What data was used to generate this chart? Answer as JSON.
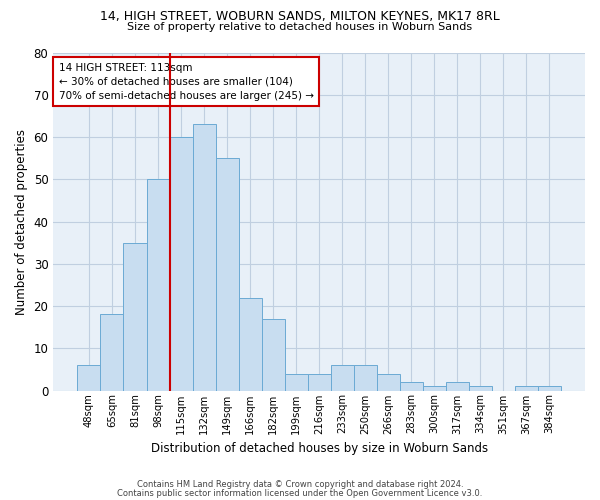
{
  "title1": "14, HIGH STREET, WOBURN SANDS, MILTON KEYNES, MK17 8RL",
  "title2": "Size of property relative to detached houses in Woburn Sands",
  "xlabel": "Distribution of detached houses by size in Woburn Sands",
  "ylabel": "Number of detached properties",
  "categories": [
    "48sqm",
    "65sqm",
    "81sqm",
    "98sqm",
    "115sqm",
    "132sqm",
    "149sqm",
    "166sqm",
    "182sqm",
    "199sqm",
    "216sqm",
    "233sqm",
    "250sqm",
    "266sqm",
    "283sqm",
    "300sqm",
    "317sqm",
    "334sqm",
    "351sqm",
    "367sqm",
    "384sqm"
  ],
  "values": [
    6,
    18,
    35,
    50,
    60,
    63,
    55,
    22,
    17,
    4,
    4,
    6,
    6,
    4,
    2,
    1,
    2,
    1,
    0,
    1,
    1
  ],
  "bar_color": "#c8ddf0",
  "bar_edge_color": "#6baad4",
  "grid_color": "#c0cfe0",
  "background_color": "#e8f0f8",
  "annotation_line1": "14 HIGH STREET: 113sqm",
  "annotation_line2": "← 30% of detached houses are smaller (104)",
  "annotation_line3": "70% of semi-detached houses are larger (245) →",
  "vline_color": "#cc0000",
  "box_color": "#cc0000",
  "ylim": [
    0,
    80
  ],
  "yticks": [
    0,
    10,
    20,
    30,
    40,
    50,
    60,
    70,
    80
  ],
  "footer1": "Contains HM Land Registry data © Crown copyright and database right 2024.",
  "footer2": "Contains public sector information licensed under the Open Government Licence v3.0."
}
